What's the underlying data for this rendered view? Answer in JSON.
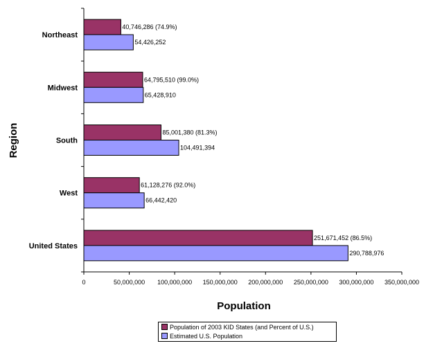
{
  "chart_data": {
    "type": "bar",
    "orientation": "horizontal",
    "title": "",
    "xlabel": "Population",
    "ylabel": "Region",
    "xlim": [
      0,
      350000000
    ],
    "x_ticks": [
      "0",
      "50,000,000",
      "100,000,000",
      "150,000,000",
      "200,000,000",
      "250,000,000",
      "300,000,000",
      "350,000,000"
    ],
    "grid": false,
    "legend_position": "bottom",
    "categories": [
      "Northeast",
      "Midwest",
      "South",
      "West",
      "United States"
    ],
    "series": [
      {
        "name": "Population of 2003 KID States (and Percent of U.S.)",
        "color": "#993366",
        "values": [
          40746286,
          64795510,
          85001380,
          61128276,
          251671452
        ],
        "labels": [
          "40,746,286 (74.9%)",
          "64,795,510 (99.0%)",
          "85,001,380 (81.3%)",
          "61,128,276 (92.0%)",
          "251,671,452 (86.5%)"
        ]
      },
      {
        "name": "Estimated U.S. Population",
        "color": "#9999FF",
        "values": [
          54426252,
          65428910,
          104491394,
          66442420,
          290788976
        ],
        "labels": [
          "54,426,252",
          "65,428,910",
          "104,491,394",
          "66,442,420",
          "290,788,976"
        ]
      }
    ]
  }
}
